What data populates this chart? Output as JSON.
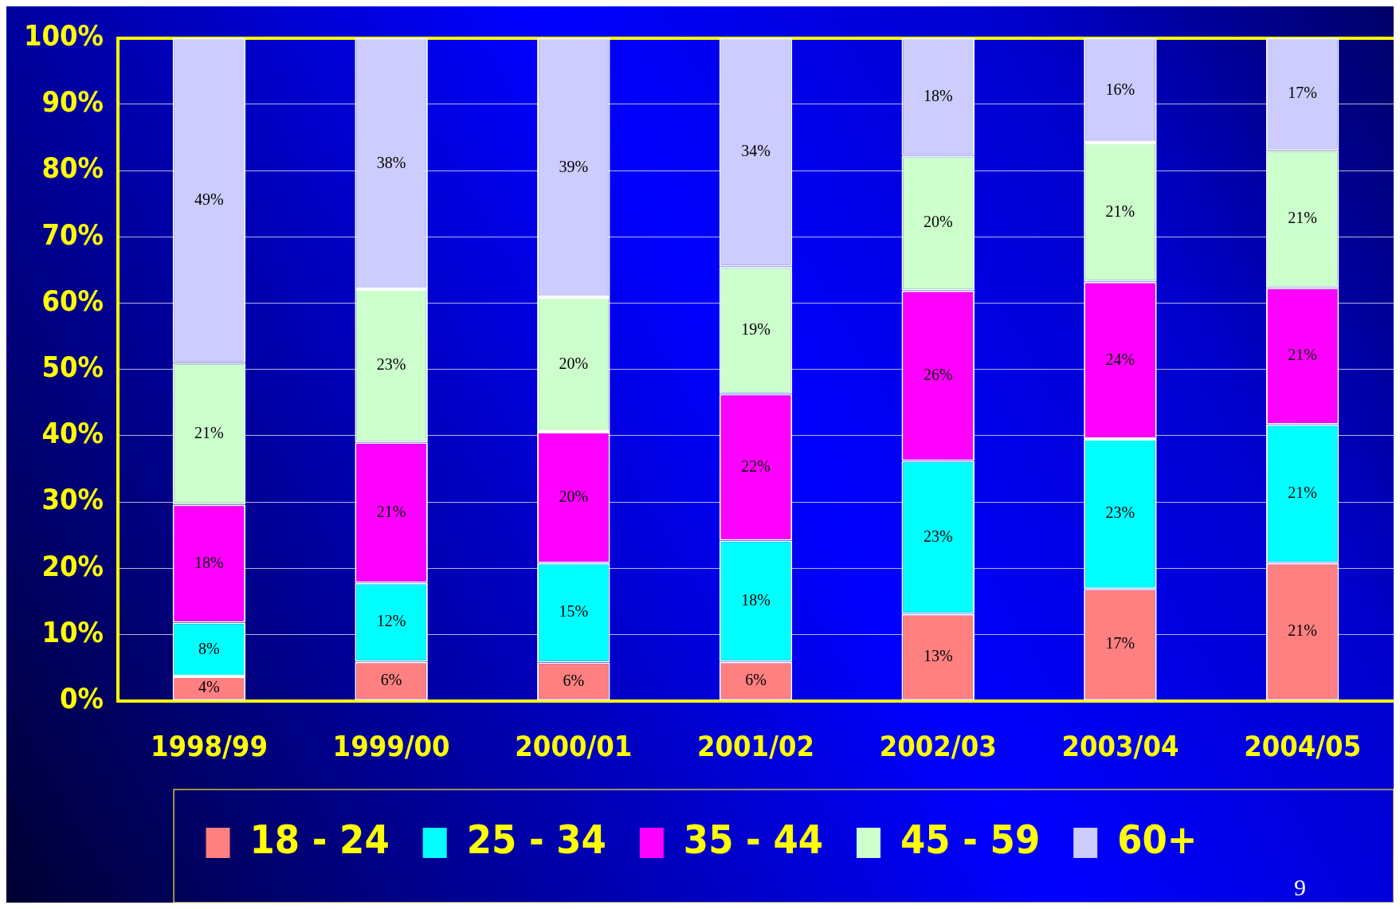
{
  "chart_data": {
    "type": "bar",
    "stacked": true,
    "categories": [
      "1998/99",
      "1999/00",
      "2000/01",
      "2001/02",
      "2002/03",
      "2003/04",
      "2004/05"
    ],
    "series": [
      {
        "name": "18 - 24",
        "color": "#ff8080",
        "values": [
          3.7,
          5.9,
          5.8,
          5.9,
          13.1,
          16.9,
          20.8
        ],
        "value_labels": [
          "4%",
          "6%",
          "6%",
          "6%",
          "13%",
          "17%",
          "21%"
        ]
      },
      {
        "name": "25 - 34",
        "color": "#00ffff",
        "values": [
          8.1,
          11.9,
          15.0,
          18.3,
          23.1,
          22.6,
          20.9
        ],
        "value_labels": [
          "8%",
          "12%",
          "15%",
          "18%",
          "23%",
          "23%",
          "21%"
        ]
      },
      {
        "name": "35 - 44",
        "color": "#ff00ff",
        "values": [
          17.8,
          21.2,
          19.8,
          22.1,
          25.7,
          23.7,
          20.6
        ],
        "value_labels": [
          "18%",
          "21%",
          "20%",
          "22%",
          "26%",
          "24%",
          "21%"
        ]
      },
      {
        "name": "45 - 59",
        "color": "#ccffcc",
        "values": [
          21.4,
          23.1,
          20.3,
          19.2,
          20.3,
          21.0,
          20.8
        ],
        "value_labels": [
          "21%",
          "23%",
          "20%",
          "19%",
          "20%",
          "21%",
          "21%"
        ]
      },
      {
        "name": "60+",
        "color": "#ccccff",
        "values": [
          49.0,
          37.9,
          39.1,
          34.5,
          17.8,
          15.8,
          16.9
        ],
        "value_labels": [
          "49%",
          "38%",
          "39%",
          "34%",
          "18%",
          "16%",
          "17%"
        ]
      }
    ],
    "ylim": [
      0,
      100
    ],
    "yticks": [
      {
        "value": 0,
        "label": "0%"
      },
      {
        "value": 10,
        "label": "10%"
      },
      {
        "value": 20,
        "label": "20%"
      },
      {
        "value": 30,
        "label": "30%"
      },
      {
        "value": 40,
        "label": "40%"
      },
      {
        "value": 50,
        "label": "50%"
      },
      {
        "value": 60,
        "label": "60%"
      },
      {
        "value": 70,
        "label": "70%"
      },
      {
        "value": 80,
        "label": "80%"
      },
      {
        "value": 90,
        "label": "90%"
      },
      {
        "value": 100,
        "label": "100%"
      }
    ],
    "grid": "y",
    "legend": "bottom",
    "annotations": [
      "9"
    ]
  }
}
